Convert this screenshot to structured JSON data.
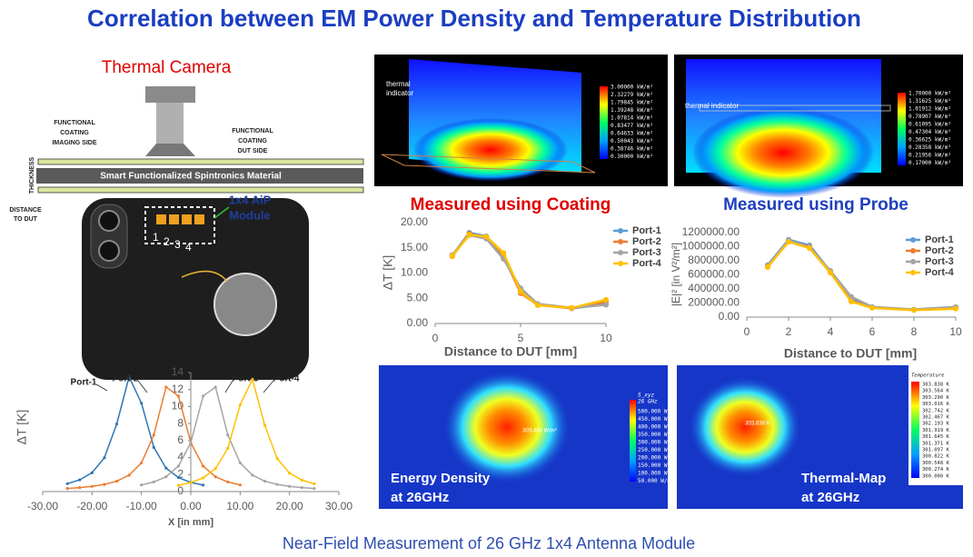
{
  "title": "Correlation between EM Power Density and Temperature Distribution",
  "footer": "Near-Field Measurement of 26 GHz 1x4 Antenna Module",
  "diagram": {
    "camera_label": "Thermal Camera",
    "imaging_side": [
      "FUNCTIONAL",
      "COATING",
      "IMAGING SIDE"
    ],
    "dut_side": [
      "FUNCTIONAL",
      "COATING",
      "DUT SIDE"
    ],
    "thickness": "THICKNESS",
    "material": "Smart Functionalized Spintronics Material",
    "distance": [
      "DISTANCE",
      "TO DUT"
    ],
    "module": [
      "1x4 AiP",
      "Module"
    ],
    "ports": [
      "1",
      "2",
      "3",
      "4"
    ]
  },
  "panels": [
    {
      "annotation": [
        "thermal",
        "indicator"
      ],
      "colorbar": [
        "3.00000 kW/m²",
        "2.32279 kW/m²",
        "1.79845 kW/m²",
        "1.39248 kW/m²",
        "1.07814 kW/m²",
        "0.83477 kW/m²",
        "0.64633 kW/m²",
        "0.50043 kW/m²",
        "0.38746 kW/m²",
        "0.30000 kW/m²"
      ]
    },
    {
      "annotation": [
        "thermal indicator"
      ],
      "colorbar": [
        "1.70000 kW/m²",
        "1.31625 kW/m²",
        "1.01912 kW/m²",
        "0.78907 kW/m²",
        "0.61095 kW/m²",
        "0.47304 kW/m²",
        "0.36625 kW/m²",
        "0.28358 kW/m²",
        "0.21956 kW/m²",
        "0.17000 kW/m²"
      ]
    },
    {
      "annotation": [
        "Energy Density",
        "at 26GHz"
      ],
      "colorbar_title": [
        "S_xyz",
        "26 GHz"
      ],
      "spot": "303.468 W/m²",
      "colorbar": [
        "500.000 W/m²",
        "450.000 W/m²",
        "400.000 W/m²",
        "350.000 W/m²",
        "300.000 W/m²",
        "250.000 W/m²",
        "200.000 W/m²",
        "150.000 W/m²",
        "100.000 W/m²",
        "50.000 W/m²"
      ]
    },
    {
      "annotation": [
        "Thermal-Map",
        "at 26GHz"
      ],
      "colorbar_title": [
        "Temperature"
      ],
      "spot": "303.838 K",
      "colorbar": [
        "303.838 K",
        "303.564 K",
        "303.290 K",
        "303.016 K",
        "302.742 K",
        "302.467 K",
        "302.193 K",
        "301.919 K",
        "301.645 K",
        "301.371 K",
        "301.097 K",
        "300.822 K",
        "300.548 K",
        "300.274 K",
        "300.000 K"
      ]
    }
  ],
  "chart_data": [
    {
      "type": "line",
      "title": "Measured using Coating",
      "x_label": "Distance to DUT [mm]",
      "y_label": "ΔT [K]",
      "x": [
        1,
        2,
        3,
        4,
        5,
        6,
        8,
        10
      ],
      "xlim": [
        0,
        10
      ],
      "xticks": [
        0,
        5,
        10
      ],
      "ylim": [
        0,
        20
      ],
      "yticks": [
        {
          "value": 0,
          "label": "0.00"
        },
        {
          "value": 5,
          "label": "5.00"
        },
        {
          "value": 10,
          "label": "10.00"
        },
        {
          "value": 15,
          "label": "15.00"
        },
        {
          "value": 20,
          "label": "20.00"
        }
      ],
      "legend": "right",
      "markers": true,
      "series": [
        {
          "name": "Port-1",
          "color": "#5b9bd5",
          "values": [
            13.5,
            18,
            17.3,
            13,
            6.5,
            3.8,
            3,
            3.8
          ]
        },
        {
          "name": "Port-2",
          "color": "#ed7d31",
          "values": [
            13.3,
            17.8,
            17,
            13.5,
            6,
            3.7,
            3,
            4.3
          ]
        },
        {
          "name": "Port-3",
          "color": "#a5a5a5",
          "values": [
            13.6,
            17.5,
            16.8,
            12.8,
            7,
            3.9,
            3.1,
            3.7
          ]
        },
        {
          "name": "Port-4",
          "color": "#ffc000",
          "values": [
            13.4,
            17.6,
            17.2,
            14,
            6.3,
            3.6,
            3.1,
            4.7
          ]
        }
      ]
    },
    {
      "type": "line",
      "title": "Measured using Probe",
      "x_label": "Distance to DUT [mm]",
      "y_label": "|E|² [in V²/m²]",
      "x": [
        1,
        2,
        3,
        4,
        5,
        6,
        8,
        10
      ],
      "xlim": [
        0,
        10
      ],
      "xticks": [
        0,
        2,
        4,
        6,
        8,
        10
      ],
      "ylim": [
        0,
        1200000
      ],
      "yticks": [
        {
          "value": 0,
          "label": "0.00"
        },
        {
          "value": 200000,
          "label": "200000.00"
        },
        {
          "value": 400000,
          "label": "400000.00"
        },
        {
          "value": 600000,
          "label": "600000.00"
        },
        {
          "value": 800000,
          "label": "800000.00"
        },
        {
          "value": 1000000,
          "label": "1000000.00"
        },
        {
          "value": 1200000,
          "label": "1200000.00"
        }
      ],
      "legend": "right",
      "markers": true,
      "series": [
        {
          "name": "Port-1",
          "color": "#5b9bd5",
          "values": [
            740000,
            1100000,
            1020000,
            650000,
            250000,
            140000,
            100000,
            140000
          ]
        },
        {
          "name": "Port-2",
          "color": "#ed7d31",
          "values": [
            720000,
            1080000,
            1000000,
            640000,
            230000,
            135000,
            105000,
            130000
          ]
        },
        {
          "name": "Port-3",
          "color": "#a5a5a5",
          "values": [
            735000,
            1090000,
            990000,
            660000,
            290000,
            145000,
            110000,
            145000
          ]
        },
        {
          "name": "Port-4",
          "color": "#ffc000",
          "values": [
            710000,
            1070000,
            980000,
            630000,
            220000,
            130000,
            100000,
            120000
          ]
        }
      ]
    },
    {
      "type": "line",
      "x_label": "X [in mm]",
      "y_label": "ΔT [K]",
      "x": [
        -25,
        -22.5,
        -20,
        -17.5,
        -15,
        -12.5,
        -10,
        -7.5,
        -5,
        -2.5,
        0,
        2.5,
        5,
        7.5,
        10,
        12.5,
        15,
        17.5,
        20,
        22.5,
        25
      ],
      "xlim": [
        -30,
        30
      ],
      "xticks": [
        {
          "value": -30,
          "label": "-30.00"
        },
        {
          "value": -20,
          "label": "-20.00"
        },
        {
          "value": -10,
          "label": "-10.00"
        },
        {
          "value": 0,
          "label": "0.00"
        },
        {
          "value": 10,
          "label": "10.00"
        },
        {
          "value": 20,
          "label": "20.00"
        },
        {
          "value": 30,
          "label": "30.00"
        }
      ],
      "ylim": [
        0,
        14
      ],
      "yticks": [
        0,
        2,
        4,
        6,
        8,
        10,
        12,
        14
      ],
      "legend": "callout",
      "markers": true,
      "series": [
        {
          "name": "Port-1",
          "color": "#2e75b6",
          "values": [
            0.93,
            1.38,
            2.22,
            3.98,
            7.95,
            13.5,
            10.4,
            5.2,
            2.76,
            1.65,
            1.08,
            0.76,
            null,
            null,
            null,
            null,
            null,
            null,
            null,
            null,
            null
          ]
        },
        {
          "name": "Port-2",
          "color": "#ed7d31",
          "values": [
            0.36,
            0.47,
            0.61,
            0.84,
            1.22,
            1.93,
            3.38,
            6.65,
            12.29,
            11.24,
            5.76,
            2.99,
            1.74,
            1.13,
            0.78,
            null,
            null,
            null,
            null,
            null,
            null
          ]
        },
        {
          "name": "Port-3",
          "color": "#a5a5a5",
          "values": [
            null,
            null,
            null,
            null,
            null,
            null,
            0.78,
            1.13,
            1.74,
            2.99,
            5.76,
            11.24,
            12.29,
            6.65,
            3.38,
            1.93,
            1.22,
            0.84,
            0.61,
            0.47,
            0.36
          ]
        },
        {
          "name": "Port-4",
          "color": "#ffc000",
          "values": [
            null,
            null,
            null,
            null,
            null,
            null,
            null,
            null,
            null,
            0.74,
            1.06,
            1.61,
            2.7,
            5.09,
            10.2,
            13.2,
            7.78,
            3.89,
            2.17,
            1.35,
            0.91
          ]
        }
      ]
    }
  ]
}
